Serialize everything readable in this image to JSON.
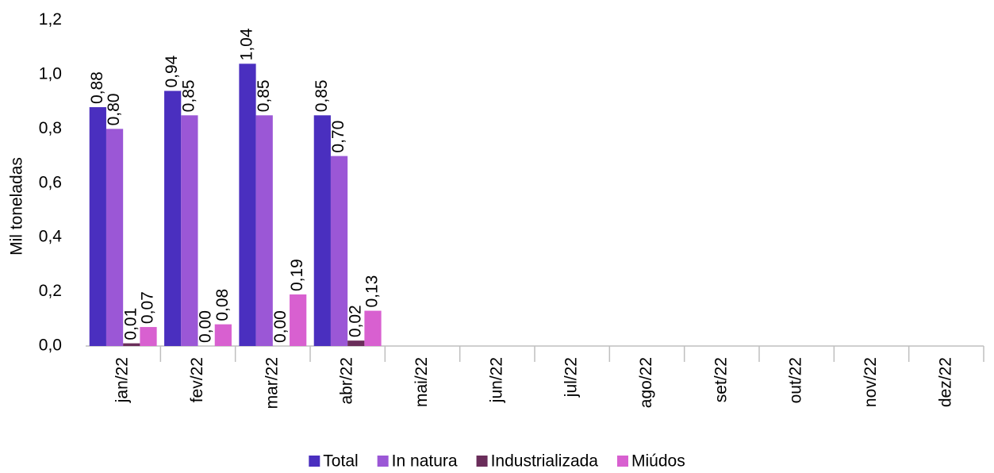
{
  "chart_data": {
    "type": "bar",
    "y_label": "Mil toneladas",
    "categories": [
      "jan/22",
      "fev/22",
      "mar/22",
      "abr/22",
      "mai/22",
      "jun/22",
      "jul/22",
      "ago/22",
      "set/22",
      "out/22",
      "nov/22",
      "dez/22"
    ],
    "series": [
      {
        "name": "Total",
        "color": "#4a2fbf",
        "values": [
          0.88,
          0.94,
          1.04,
          0.85,
          null,
          null,
          null,
          null,
          null,
          null,
          null,
          null
        ],
        "value_labels": [
          "0,88",
          "0,94",
          "1,04",
          "0,85",
          null,
          null,
          null,
          null,
          null,
          null,
          null,
          null
        ]
      },
      {
        "name": "In natura",
        "color": "#9b57d6",
        "values": [
          0.8,
          0.85,
          0.85,
          0.7,
          null,
          null,
          null,
          null,
          null,
          null,
          null,
          null
        ],
        "value_labels": [
          "0,80",
          "0,85",
          "0,85",
          "0,70",
          null,
          null,
          null,
          null,
          null,
          null,
          null,
          null
        ]
      },
      {
        "name": "Industrializada",
        "color": "#6a2d5a",
        "values": [
          0.01,
          0.0,
          0.0,
          0.02,
          null,
          null,
          null,
          null,
          null,
          null,
          null,
          null
        ],
        "value_labels": [
          "0,01",
          "0,00",
          "0,00",
          "0,02",
          null,
          null,
          null,
          null,
          null,
          null,
          null,
          null
        ]
      },
      {
        "name": "Miúdos",
        "color": "#d860d0",
        "values": [
          0.07,
          0.08,
          0.19,
          0.13,
          null,
          null,
          null,
          null,
          null,
          null,
          null,
          null
        ],
        "value_labels": [
          "0,07",
          "0,08",
          "0,19",
          "0,13",
          null,
          null,
          null,
          null,
          null,
          null,
          null,
          null
        ]
      }
    ],
    "ylim": [
      0,
      1.2
    ],
    "yticks": [
      {
        "value": 0,
        "label": "0,0"
      },
      {
        "value": 0.2,
        "label": "0,2"
      },
      {
        "value": 0.4,
        "label": "0,4"
      },
      {
        "value": 0.6,
        "label": "0,6"
      },
      {
        "value": 0.8,
        "label": "0,8"
      },
      {
        "value": 1.0,
        "label": "1,0"
      },
      {
        "value": 1.2,
        "label": "1,2"
      }
    ],
    "grid": false,
    "legend": "bottom"
  }
}
